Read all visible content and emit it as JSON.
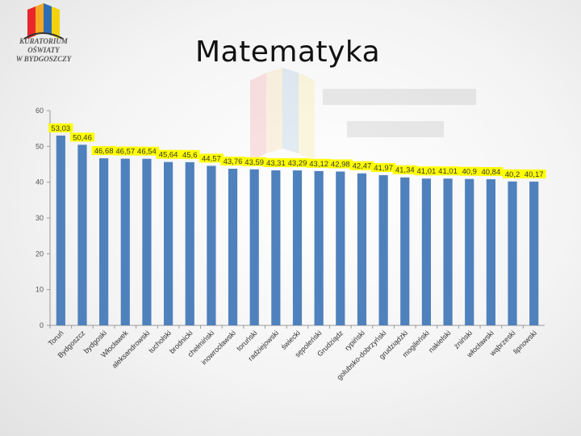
{
  "header": {
    "title": "Matematyka",
    "logo_line1": "KURATORIUM OŚWIATY",
    "logo_line2": "W BYDGOSZCZY"
  },
  "colors": {
    "bar": "#4f81bd",
    "label_bg": "#ffff00",
    "axis": "#999999"
  },
  "chart_data": {
    "type": "bar",
    "title": "",
    "xlabel": "",
    "ylabel": "",
    "ylim": [
      0,
      60
    ],
    "yticks": [
      0,
      10,
      20,
      30,
      40,
      50,
      60
    ],
    "grid": false,
    "categories": [
      "Toruń",
      "Bydgoszcz",
      "bydgoski",
      "Włocławek",
      "aleksandrowski",
      "tucholski",
      "brodnicki",
      "chełmiński",
      "inowrocławski",
      "toruński",
      "radziejowski",
      "świecki",
      "sępoleński",
      "Grudziądz",
      "rypiński",
      "golubsko-dobrzyński",
      "grudziądzki",
      "mogileński",
      "nakielski",
      "żniński",
      "włocławski",
      "wąbrzeski",
      "lipnowski"
    ],
    "values": [
      53.03,
      50.46,
      46.68,
      46.57,
      46.54,
      45.64,
      45.6,
      44.57,
      43.76,
      43.59,
      43.31,
      43.29,
      43.12,
      42.98,
      42.47,
      41.97,
      41.34,
      41.01,
      41.01,
      40.9,
      40.84,
      40.2,
      40.17
    ],
    "data_labels": [
      "53,03",
      "50,46",
      "46,68",
      "46,57",
      "46,54",
      "45,64",
      "45,6",
      "44,57",
      "43,76",
      "43,59",
      "43,31",
      "43,29",
      "43,12",
      "42,98",
      "42,47",
      "41,97",
      "41,34",
      "41,01",
      "41,01",
      "40,9",
      "40,84",
      "40,2",
      "40,17"
    ]
  }
}
